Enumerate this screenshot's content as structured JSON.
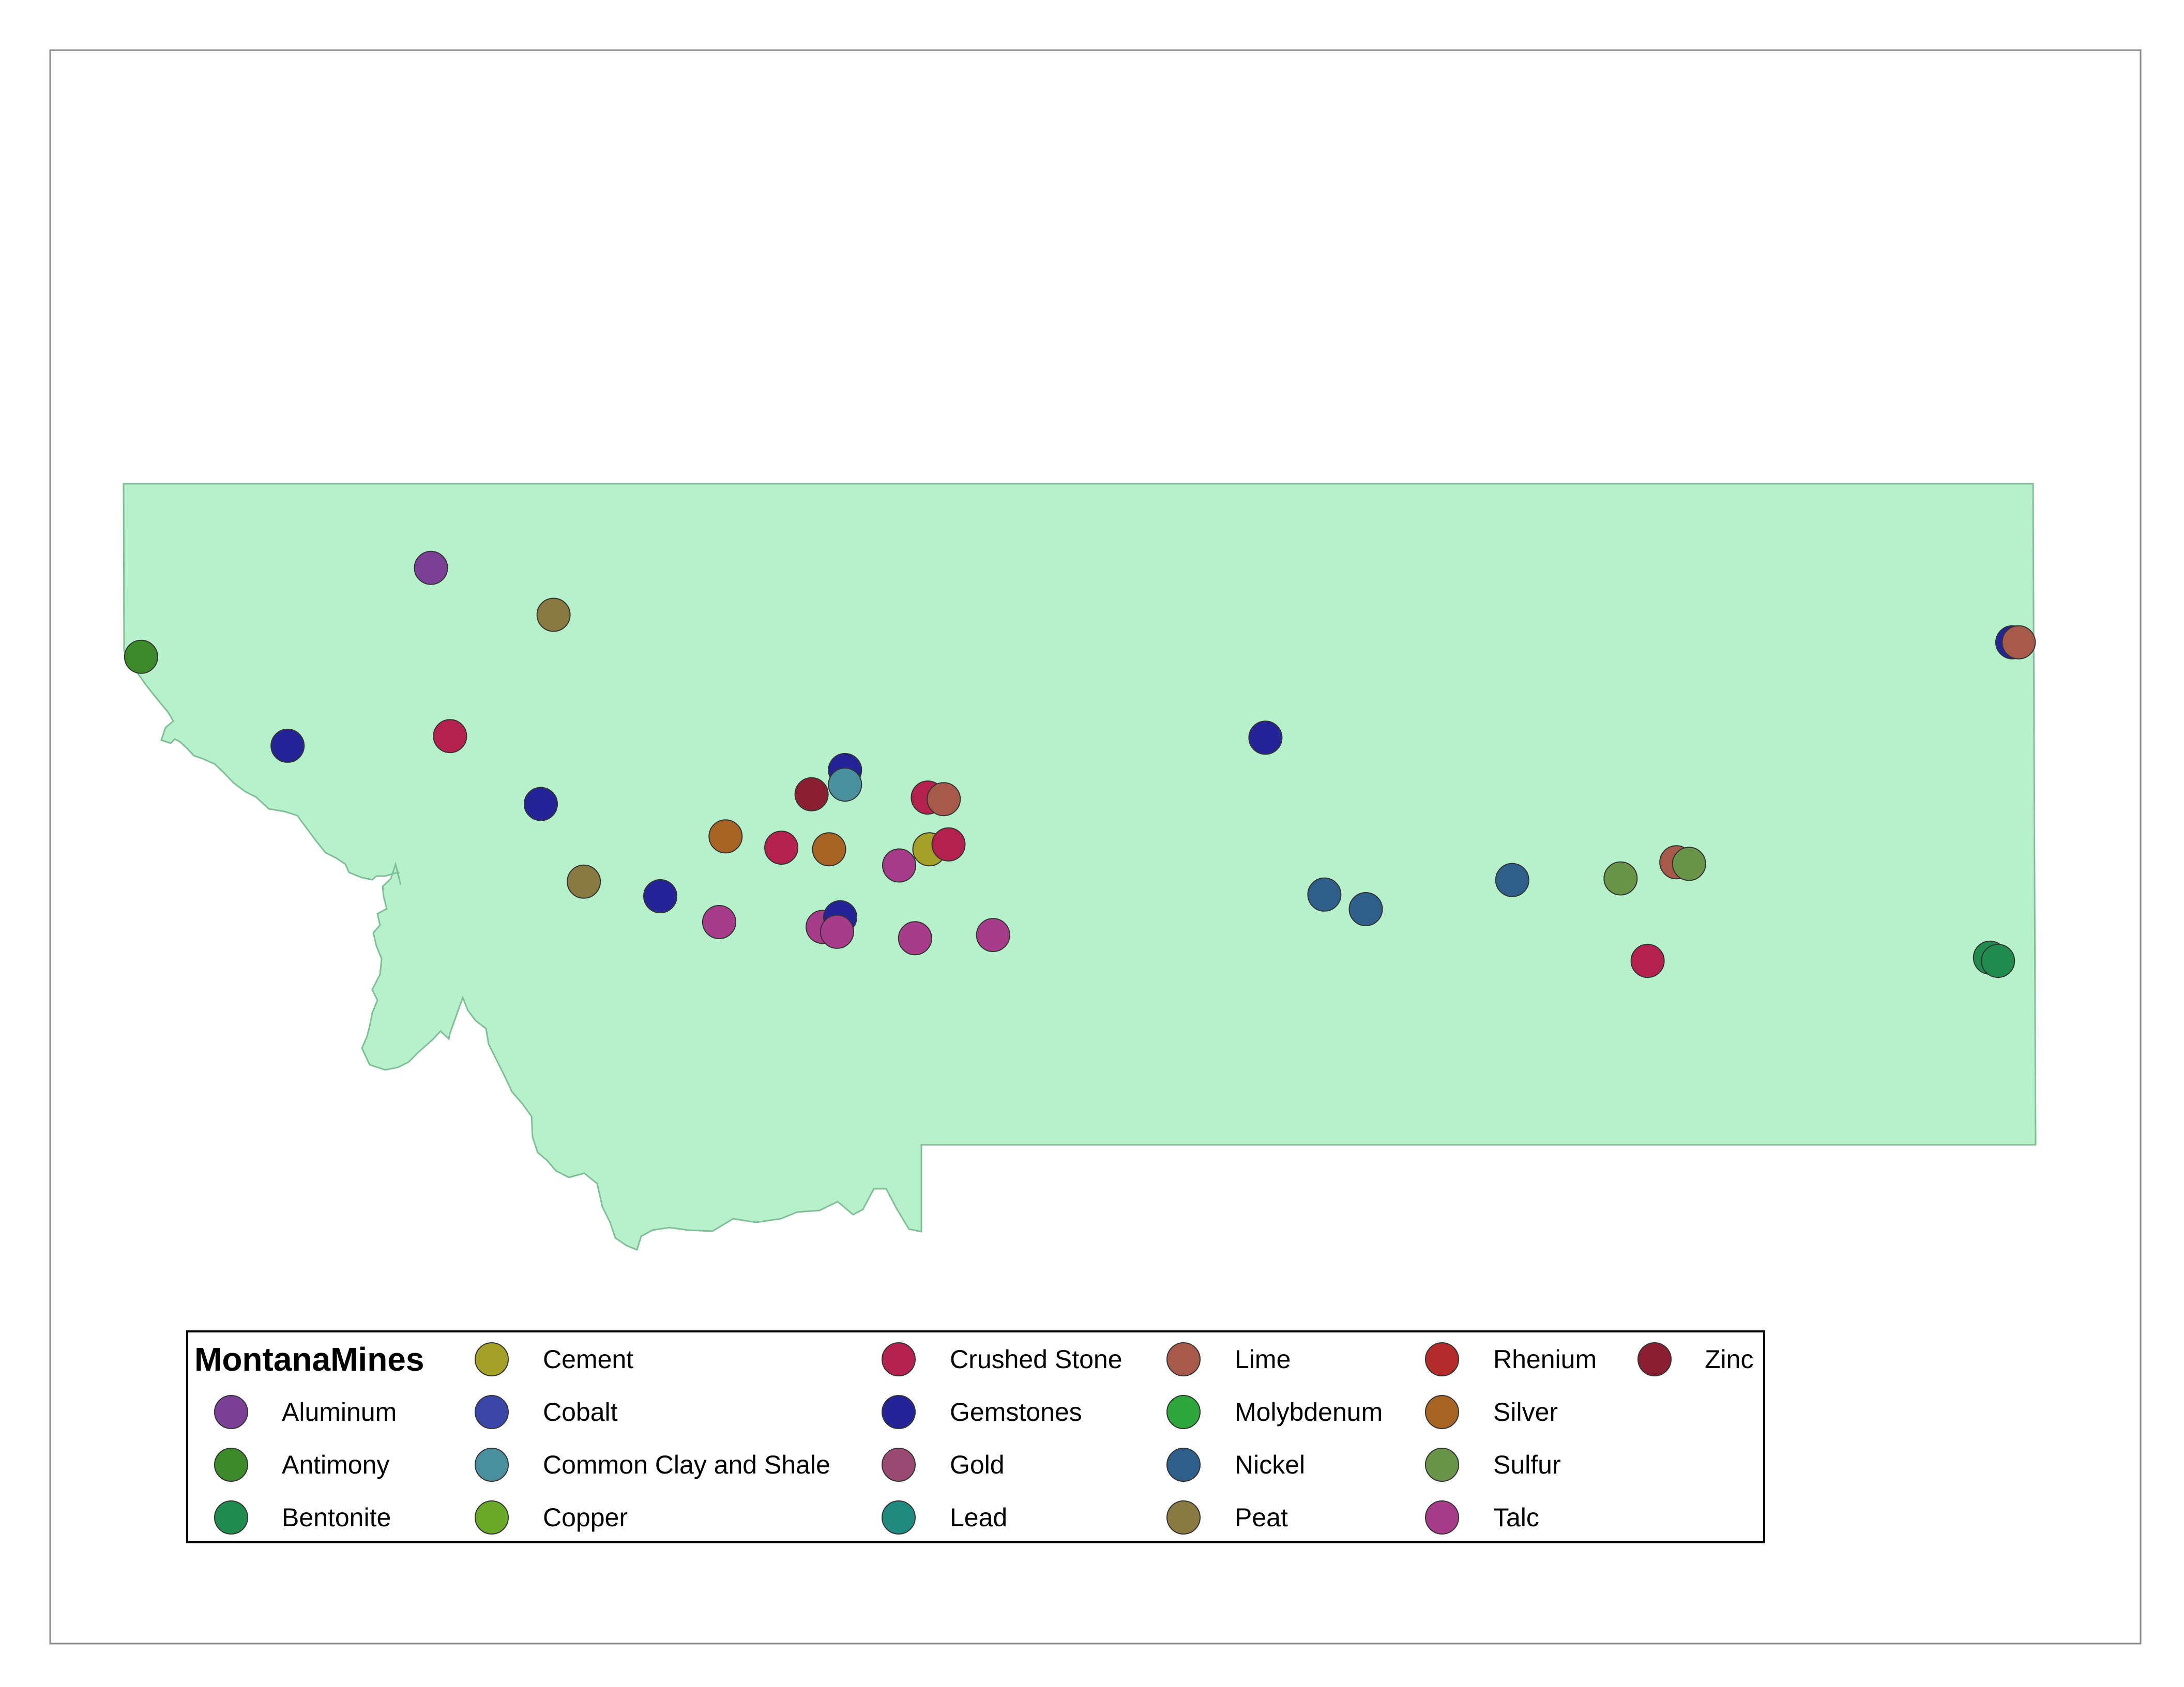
{
  "legend": {
    "title": "MontanaMines",
    "items": [
      {
        "label": "Aluminum",
        "color": "#7b3f98"
      },
      {
        "label": "Antimony",
        "color": "#3c8a2a"
      },
      {
        "label": "Bentonite",
        "color": "#1f8b4c"
      },
      {
        "label": "Cement",
        "color": "#a5a028"
      },
      {
        "label": "Cobalt",
        "color": "#3a47a8"
      },
      {
        "label": "Common Clay and Shale",
        "color": "#4a8fa0"
      },
      {
        "label": "Copper",
        "color": "#6aa827"
      },
      {
        "label": "Crushed Stone",
        "color": "#b5214e"
      },
      {
        "label": "Gemstones",
        "color": "#252496"
      },
      {
        "label": "Gold",
        "color": "#9a4a72"
      },
      {
        "label": "Lead",
        "color": "#1f8a80"
      },
      {
        "label": "Lime",
        "color": "#a85a4a"
      },
      {
        "label": "Molybdenum",
        "color": "#2ea83a"
      },
      {
        "label": "Nickel",
        "color": "#2e5e8a"
      },
      {
        "label": "Peat",
        "color": "#8a7a42"
      },
      {
        "label": "Rhenium",
        "color": "#b52a2a"
      },
      {
        "label": "Silver",
        "color": "#a86424"
      },
      {
        "label": "Sulfur",
        "color": "#6a9448"
      },
      {
        "label": "Talc",
        "color": "#a83c8a"
      },
      {
        "label": "Zinc",
        "color": "#8a1f32"
      }
    ]
  },
  "mines": [
    {
      "type": "Aluminum",
      "lon": -114.12,
      "lat": 48.48
    },
    {
      "type": "Peat",
      "lon": -113.35,
      "lat": 48.19
    },
    {
      "type": "Antimony",
      "lon": -115.94,
      "lat": 47.93
    },
    {
      "type": "Gemstones",
      "lon": -115.02,
      "lat": 47.38
    },
    {
      "type": "Crushed Stone",
      "lon": -114.0,
      "lat": 47.44
    },
    {
      "type": "Gemstones",
      "lon": -108.88,
      "lat": 47.43
    },
    {
      "type": "Gemstones",
      "lon": -111.52,
      "lat": 47.23
    },
    {
      "type": "Common Clay and Shale",
      "lon": -111.52,
      "lat": 47.14
    },
    {
      "type": "Zinc",
      "lon": -111.73,
      "lat": 47.08
    },
    {
      "type": "Crushed Stone",
      "lon": -111.0,
      "lat": 47.06
    },
    {
      "type": "Lime",
      "lon": -110.9,
      "lat": 47.05
    },
    {
      "type": "Gemstones",
      "lon": -113.43,
      "lat": 47.02
    },
    {
      "type": "Silver",
      "lon": -112.27,
      "lat": 46.82
    },
    {
      "type": "Crushed Stone",
      "lon": -111.92,
      "lat": 46.75
    },
    {
      "type": "Silver",
      "lon": -111.62,
      "lat": 46.74
    },
    {
      "type": "Cement",
      "lon": -110.99,
      "lat": 46.74
    },
    {
      "type": "Crushed Stone",
      "lon": -110.87,
      "lat": 46.77
    },
    {
      "type": "Talc",
      "lon": -111.18,
      "lat": 46.64
    },
    {
      "type": "Peat",
      "lon": -113.16,
      "lat": 46.54
    },
    {
      "type": "Gemstones",
      "lon": -112.68,
      "lat": 46.45
    },
    {
      "type": "Talc",
      "lon": -112.31,
      "lat": 46.29
    },
    {
      "type": "Talc",
      "lon": -111.66,
      "lat": 46.26
    },
    {
      "type": "Gemstones",
      "lon": -111.55,
      "lat": 46.32
    },
    {
      "type": "Talc",
      "lon": -111.57,
      "lat": 46.23
    },
    {
      "type": "Talc",
      "lon": -111.08,
      "lat": 46.19
    },
    {
      "type": "Talc",
      "lon": -110.59,
      "lat": 46.21
    },
    {
      "type": "Nickel",
      "lon": -108.51,
      "lat": 46.46
    },
    {
      "type": "Nickel",
      "lon": -108.25,
      "lat": 46.37
    },
    {
      "type": "Nickel",
      "lon": -107.33,
      "lat": 46.55
    },
    {
      "type": "Sulfur",
      "lon": -106.65,
      "lat": 46.56
    },
    {
      "type": "Lime",
      "lon": -106.3,
      "lat": 46.66
    },
    {
      "type": "Sulfur",
      "lon": -106.22,
      "lat": 46.65
    },
    {
      "type": "Crushed Stone",
      "lon": -106.48,
      "lat": 46.05
    },
    {
      "type": "Gemstones",
      "lon": -104.19,
      "lat": 48.02
    },
    {
      "type": "Lime",
      "lon": -104.15,
      "lat": 48.02
    },
    {
      "type": "Bentonite",
      "lon": -104.33,
      "lat": 46.07
    },
    {
      "type": "Bentonite",
      "lon": -104.28,
      "lat": 46.05
    }
  ]
}
